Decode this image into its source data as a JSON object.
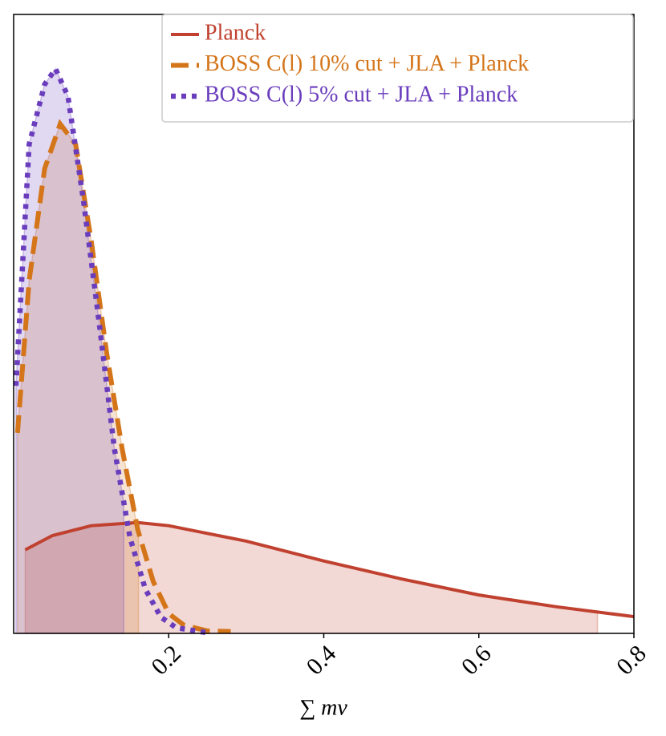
{
  "chart_data": {
    "type": "line",
    "xlabel": "∑ mν",
    "xlim": [
      0,
      0.8
    ],
    "ylim": [
      0,
      1
    ],
    "xticks": [
      0.2,
      0.4,
      0.6,
      0.8
    ],
    "legend": "upper right",
    "series": [
      {
        "name": "Planck",
        "color": "#c0412f",
        "style": "solid",
        "x": [
          0.015,
          0.05,
          0.1,
          0.16,
          0.2,
          0.3,
          0.4,
          0.5,
          0.6,
          0.7,
          0.8
        ],
        "values": [
          0.135,
          0.158,
          0.174,
          0.179,
          0.174,
          0.149,
          0.117,
          0.088,
          0.062,
          0.043,
          0.027
        ],
        "upper_limit": 0.753
      },
      {
        "name": "BOSS C(l) 10% cut + JLA + Planck",
        "color": "#d4751a",
        "style": "dashed",
        "x": [
          0.005,
          0.02,
          0.04,
          0.06,
          0.08,
          0.1,
          0.12,
          0.14,
          0.16,
          0.18,
          0.2,
          0.22,
          0.25,
          0.28
        ],
        "values": [
          0.324,
          0.57,
          0.751,
          0.823,
          0.79,
          0.635,
          0.453,
          0.298,
          0.168,
          0.084,
          0.032,
          0.013,
          0.004,
          0.003
        ],
        "upper_limit": 0.161
      },
      {
        "name": "BOSS C(l) 5% cut + JLA + Planck",
        "color": "#6a3dbd",
        "style": "dotted",
        "x": [
          0.003,
          0.02,
          0.04,
          0.054,
          0.07,
          0.09,
          0.11,
          0.13,
          0.15,
          0.17,
          0.19,
          0.21,
          0.25
        ],
        "values": [
          0.4,
          0.79,
          0.887,
          0.912,
          0.868,
          0.7,
          0.505,
          0.298,
          0.155,
          0.071,
          0.026,
          0.009,
          0.001
        ],
        "upper_limit": 0.142
      }
    ]
  }
}
